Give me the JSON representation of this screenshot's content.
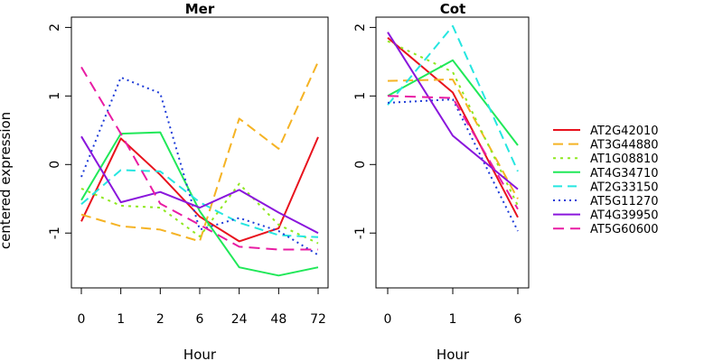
{
  "chart_data": [
    {
      "type": "line",
      "title": "Mer",
      "xlabel": "Hour",
      "ylabel": "centered expression",
      "x": [
        "0",
        "1",
        "2",
        "6",
        "24",
        "48",
        "72"
      ],
      "ylim": [
        -1.8,
        2.15
      ],
      "yticks": [
        -1,
        0,
        1,
        2
      ],
      "grid": false,
      "series": [
        {
          "name": "AT2G42010",
          "values": [
            -0.83,
            0.38,
            -0.15,
            -0.76,
            -1.12,
            -0.93,
            0.4
          ]
        },
        {
          "name": "AT3G44880",
          "values": [
            -0.73,
            -0.9,
            -0.95,
            -1.12,
            0.67,
            0.23,
            1.5
          ]
        },
        {
          "name": "AT1G08810",
          "values": [
            -0.35,
            -0.6,
            -0.63,
            -1.05,
            -0.28,
            -0.88,
            -1.15
          ]
        },
        {
          "name": "AT4G34710",
          "values": [
            -0.52,
            0.45,
            0.47,
            -0.68,
            -1.5,
            -1.62,
            -1.5
          ]
        },
        {
          "name": "AT2G33150",
          "values": [
            -0.58,
            -0.08,
            -0.1,
            -0.55,
            -0.85,
            -1.03,
            -1.06
          ]
        },
        {
          "name": "AT5G11270",
          "values": [
            -0.18,
            1.27,
            1.04,
            -0.95,
            -0.78,
            -0.97,
            -1.32
          ]
        },
        {
          "name": "AT4G39950",
          "values": [
            0.41,
            -0.55,
            -0.4,
            -0.63,
            -0.37,
            -0.7,
            -1.0
          ]
        },
        {
          "name": "AT5G60600",
          "values": [
            1.42,
            0.45,
            -0.57,
            -0.88,
            -1.2,
            -1.24,
            -1.24
          ]
        }
      ]
    },
    {
      "type": "line",
      "title": "Cot",
      "xlabel": "Hour",
      "ylabel": "",
      "x": [
        "0",
        "1",
        "6"
      ],
      "ylim": [
        -1.8,
        2.15
      ],
      "yticks": [
        -1,
        0,
        1,
        2
      ],
      "grid": false,
      "series": [
        {
          "name": "AT2G42010",
          "values": [
            1.85,
            1.05,
            -0.77
          ]
        },
        {
          "name": "AT3G44880",
          "values": [
            1.22,
            1.24,
            -0.5
          ]
        },
        {
          "name": "AT1G08810",
          "values": [
            1.8,
            1.35,
            -0.6
          ]
        },
        {
          "name": "AT4G34710",
          "values": [
            1.0,
            1.52,
            0.28
          ]
        },
        {
          "name": "AT2G33150",
          "values": [
            0.87,
            2.02,
            -0.1
          ]
        },
        {
          "name": "AT5G11270",
          "values": [
            0.9,
            0.95,
            -0.97
          ]
        },
        {
          "name": "AT4G39950",
          "values": [
            1.93,
            0.42,
            -0.36
          ]
        },
        {
          "name": "AT5G60600",
          "values": [
            1.0,
            0.97,
            -0.65
          ]
        }
      ]
    }
  ],
  "styles": [
    {
      "color": "#e8121d",
      "dash": ""
    },
    {
      "color": "#f5b324",
      "dash": "11,6"
    },
    {
      "color": "#8fe820",
      "dash": "3,5"
    },
    {
      "color": "#20e858",
      "dash": ""
    },
    {
      "color": "#25e6e0",
      "dash": "10,6"
    },
    {
      "color": "#1e3cd8",
      "dash": "2,4"
    },
    {
      "color": "#8a16dc",
      "dash": ""
    },
    {
      "color": "#e81ca3",
      "dash": "12,7"
    }
  ],
  "legend_position": "right"
}
